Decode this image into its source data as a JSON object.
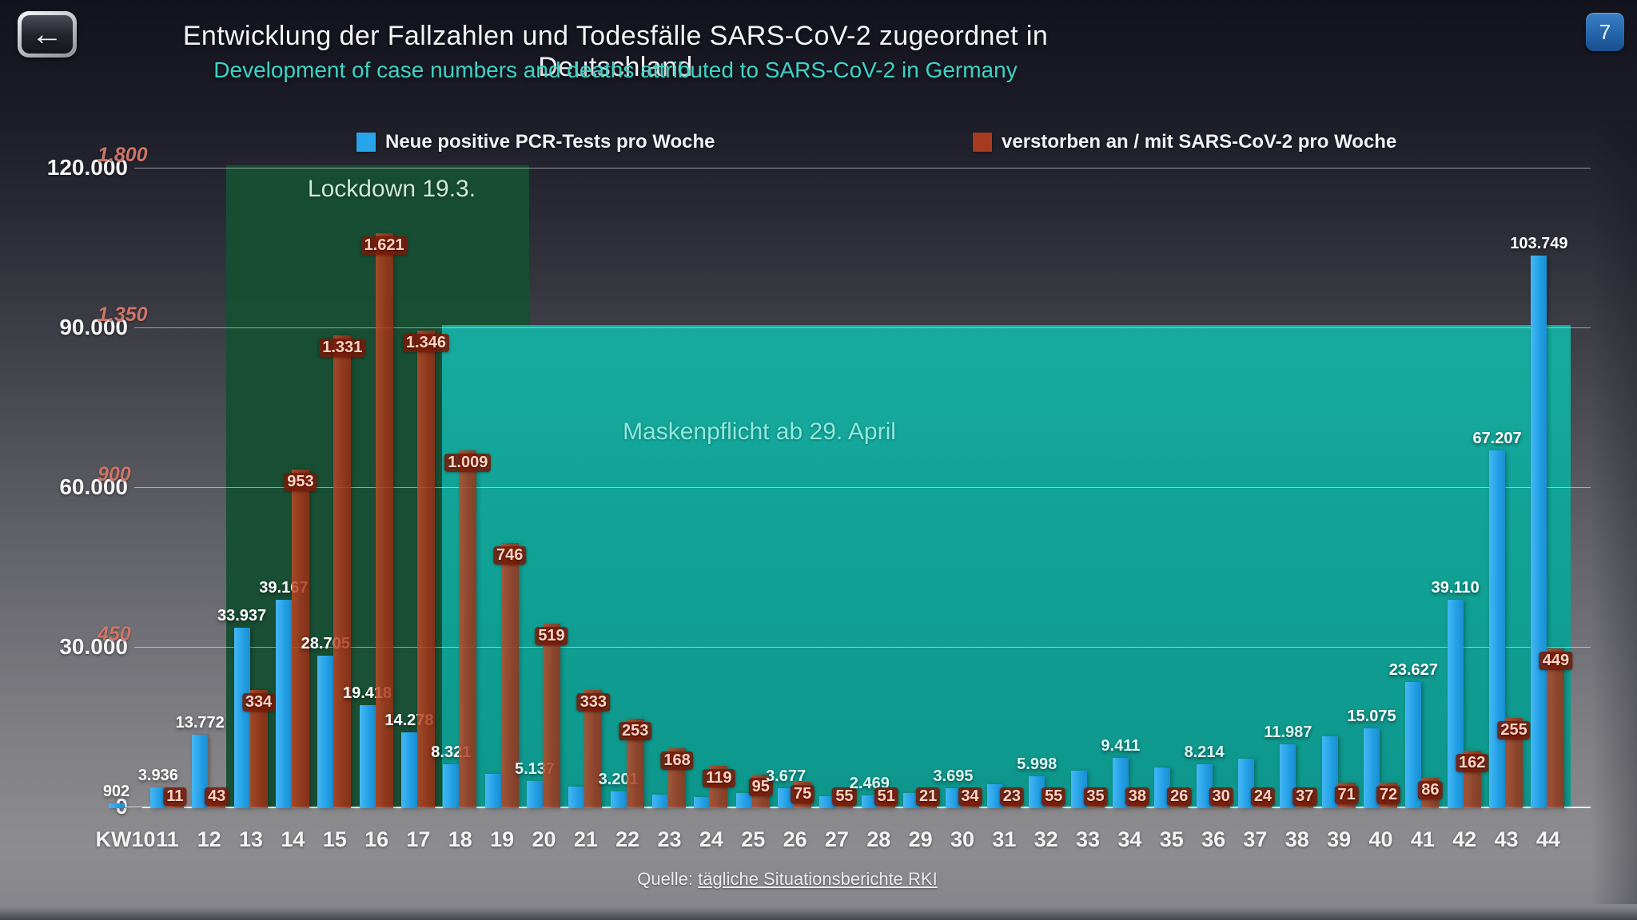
{
  "header": {
    "page_badge": "7"
  },
  "source": {
    "prefix": "Quelle: ",
    "link_label": "tägliche Situationsberichte RKI"
  },
  "annotations": {
    "lockdown": "Lockdown 19.3.",
    "mask": "Maskenpflicht ab 29. April"
  },
  "colors": {
    "cases_blue": "#28a5ea",
    "deaths_red": "#a83a20",
    "subtitle_teal": "#3ed3c6",
    "lockdown_green": "#174e33",
    "mask_teal": "#10a094",
    "badge_blue": "#2465ab"
  },
  "chart_data": {
    "type": "bar",
    "title": "Entwicklung der Fallzahlen und Todesfälle SARS-CoV-2 zugeordnet in Deutschland",
    "subtitle": "Development of case numbers and deaths attributed to SARS-CoV-2 in Germany",
    "legend_position": "top",
    "grid": true,
    "y_left": {
      "ticks": [
        "0",
        "30.000",
        "60.000",
        "90.000",
        "120.000"
      ],
      "max": 120000
    },
    "y_right": {
      "ticks": [
        "450",
        "900",
        "1.350",
        "1.800"
      ],
      "max": 1800
    },
    "series": [
      {
        "name": "Neue positive PCR-Tests pro Woche",
        "color": "#28a5ea"
      },
      {
        "name": "verstorben an / mit SARS-CoV-2 pro Woche",
        "color": "#a83a20"
      }
    ],
    "weeks": [
      {
        "kw": "KW10",
        "cases": 902,
        "cases_label": "902",
        "deaths": 2,
        "deaths_label": ""
      },
      {
        "kw": "11",
        "cases": 3936,
        "cases_label": "3.936",
        "deaths": 11,
        "deaths_label": "11"
      },
      {
        "kw": "12",
        "cases": 13772,
        "cases_label": "13.772",
        "deaths": 43,
        "deaths_label": "43"
      },
      {
        "kw": "13",
        "cases": 33937,
        "cases_label": "33.937",
        "deaths": 334,
        "deaths_label": "334"
      },
      {
        "kw": "14",
        "cases": 39167,
        "cases_label": "39.167",
        "deaths": 953,
        "deaths_label": "953"
      },
      {
        "kw": "15",
        "cases": 28705,
        "cases_label": "28.705",
        "deaths": 1331,
        "deaths_label": "1.331"
      },
      {
        "kw": "16",
        "cases": 19418,
        "cases_label": "19.418",
        "deaths": 1621,
        "deaths_label": "1.621"
      },
      {
        "kw": "17",
        "cases": 14278,
        "cases_label": "14.278",
        "deaths": 1346,
        "deaths_label": "1.346"
      },
      {
        "kw": "18",
        "cases": 8321,
        "cases_label": "8.321",
        "deaths": 1009,
        "deaths_label": "1.009"
      },
      {
        "kw": "19",
        "cases": 6400,
        "cases_label": "",
        "deaths": 746,
        "deaths_label": "746"
      },
      {
        "kw": "20",
        "cases": 5137,
        "cases_label": "5.137",
        "deaths": 519,
        "deaths_label": "519"
      },
      {
        "kw": "21",
        "cases": 4000,
        "cases_label": "",
        "deaths": 333,
        "deaths_label": "333"
      },
      {
        "kw": "22",
        "cases": 3201,
        "cases_label": "3.201",
        "deaths": 253,
        "deaths_label": "253"
      },
      {
        "kw": "23",
        "cases": 2600,
        "cases_label": "",
        "deaths": 168,
        "deaths_label": "168"
      },
      {
        "kw": "24",
        "cases": 2150,
        "cases_label": "",
        "deaths": 119,
        "deaths_label": "119"
      },
      {
        "kw": "25",
        "cases": 2900,
        "cases_label": "",
        "deaths": 95,
        "deaths_label": "95"
      },
      {
        "kw": "26",
        "cases": 3677,
        "cases_label": "3.677",
        "deaths": 75,
        "deaths_label": "75"
      },
      {
        "kw": "27",
        "cases": 2300,
        "cases_label": "",
        "deaths": 55,
        "deaths_label": "55"
      },
      {
        "kw": "28",
        "cases": 2469,
        "cases_label": "2.469",
        "deaths": 51,
        "deaths_label": "51"
      },
      {
        "kw": "29",
        "cases": 2900,
        "cases_label": "",
        "deaths": 21,
        "deaths_label": "21"
      },
      {
        "kw": "30",
        "cases": 3695,
        "cases_label": "3.695",
        "deaths": 34,
        "deaths_label": "34"
      },
      {
        "kw": "31",
        "cases": 4500,
        "cases_label": "",
        "deaths": 23,
        "deaths_label": "23"
      },
      {
        "kw": "32",
        "cases": 5998,
        "cases_label": "5.998",
        "deaths": 55,
        "deaths_label": "55"
      },
      {
        "kw": "33",
        "cases": 7000,
        "cases_label": "",
        "deaths": 35,
        "deaths_label": "35"
      },
      {
        "kw": "34",
        "cases": 9411,
        "cases_label": "9.411",
        "deaths": 38,
        "deaths_label": "38"
      },
      {
        "kw": "35",
        "cases": 7600,
        "cases_label": "",
        "deaths": 26,
        "deaths_label": "26"
      },
      {
        "kw": "36",
        "cases": 8214,
        "cases_label": "8.214",
        "deaths": 30,
        "deaths_label": "30"
      },
      {
        "kw": "37",
        "cases": 9300,
        "cases_label": "",
        "deaths": 24,
        "deaths_label": "24"
      },
      {
        "kw": "38",
        "cases": 11987,
        "cases_label": "11.987",
        "deaths": 37,
        "deaths_label": "37"
      },
      {
        "kw": "39",
        "cases": 13500,
        "cases_label": "",
        "deaths": 71,
        "deaths_label": "71"
      },
      {
        "kw": "40",
        "cases": 15075,
        "cases_label": "15.075",
        "deaths": 72,
        "deaths_label": "72"
      },
      {
        "kw": "41",
        "cases": 23627,
        "cases_label": "23.627",
        "deaths": 86,
        "deaths_label": "86"
      },
      {
        "kw": "42",
        "cases": 39110,
        "cases_label": "39.110",
        "deaths": 162,
        "deaths_label": "162"
      },
      {
        "kw": "43",
        "cases": 67207,
        "cases_label": "67.207",
        "deaths": 255,
        "deaths_label": "255"
      },
      {
        "kw": "44",
        "cases": 103749,
        "cases_label": "103.749",
        "deaths": 449,
        "deaths_label": "449"
      }
    ]
  }
}
